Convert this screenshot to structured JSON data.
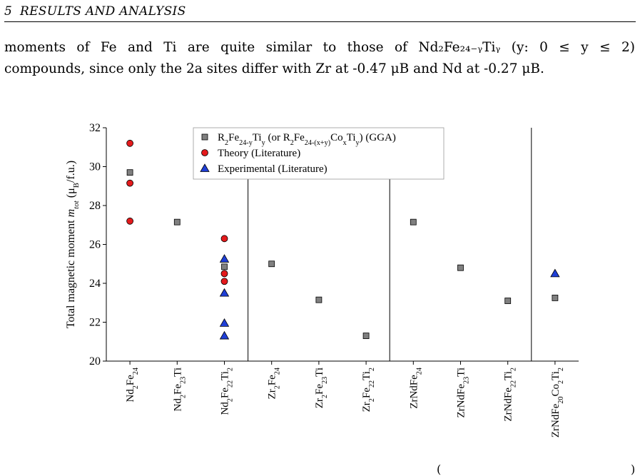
{
  "header": {
    "section_number": "5",
    "section_title": "RESULTS AND ANALYSIS"
  },
  "paragraph": {
    "line1": "moments of Fe and Ti are quite similar to those of Nd₂Fe₂₄₋ᵧTiᵧ (y:  0 ≤ y ≤ 2)",
    "line2": "compounds, since only the 2a sites differ with Zr at -0.47 μB and Nd at -0.27 μB."
  },
  "footer": {
    "left_paren": "(",
    "right_paren": ")"
  },
  "colors": {
    "gga": "#808080",
    "theory": "#e41a1c",
    "experimental": "#1f3fd6"
  },
  "chart_data": {
    "type": "scatter",
    "ylabel": "Total magnetic moment m_tot (μB/f.u.)",
    "ylim": [
      20,
      32
    ],
    "yticks": [
      20,
      22,
      24,
      26,
      28,
      30,
      32
    ],
    "categories": [
      "Nd2Fe24",
      "Nd2Fe23Ti",
      "Nd2Fe22Ti2",
      "Zr2Fe24",
      "Zr2Fe23Ti",
      "Zr2Fe22Ti2",
      "ZrNdFe24",
      "ZrNdFe23Ti",
      "ZrNdFe22Ti2",
      "ZrNdFe20Co2Ti2"
    ],
    "category_labels": [
      [
        [
          "Nd",
          "n"
        ],
        [
          "2",
          "s"
        ],
        [
          "Fe",
          "n"
        ],
        [
          "24",
          "s"
        ]
      ],
      [
        [
          "Nd",
          "n"
        ],
        [
          "2",
          "s"
        ],
        [
          "Fe",
          "n"
        ],
        [
          "23",
          "s"
        ],
        [
          "Ti",
          "n"
        ]
      ],
      [
        [
          "Nd",
          "n"
        ],
        [
          "2",
          "s"
        ],
        [
          "Fe",
          "n"
        ],
        [
          "22",
          "s"
        ],
        [
          "Ti",
          "n"
        ],
        [
          "2",
          "s"
        ]
      ],
      [
        [
          "Zr",
          "n"
        ],
        [
          "2",
          "s"
        ],
        [
          "Fe",
          "n"
        ],
        [
          "24",
          "s"
        ]
      ],
      [
        [
          "Zr",
          "n"
        ],
        [
          "2",
          "s"
        ],
        [
          "Fe",
          "n"
        ],
        [
          "23",
          "s"
        ],
        [
          "Ti",
          "n"
        ]
      ],
      [
        [
          "Zr",
          "n"
        ],
        [
          "2",
          "s"
        ],
        [
          "Fe",
          "n"
        ],
        [
          "22",
          "s"
        ],
        [
          "Ti",
          "n"
        ],
        [
          "2",
          "s"
        ]
      ],
      [
        [
          "ZrNdFe",
          "n"
        ],
        [
          "24",
          "s"
        ]
      ],
      [
        [
          "ZrNdFe",
          "n"
        ],
        [
          "23",
          "s"
        ],
        [
          "Ti",
          "n"
        ]
      ],
      [
        [
          "ZrNdFe",
          "n"
        ],
        [
          "22",
          "s"
        ],
        [
          "Ti",
          "n"
        ],
        [
          "2",
          "s"
        ]
      ],
      [
        [
          "ZrNdFe",
          "n"
        ],
        [
          "20",
          "s"
        ],
        [
          "Co",
          "n"
        ],
        [
          "2",
          "s"
        ],
        [
          "Ti",
          "n"
        ],
        [
          "2",
          "s"
        ]
      ]
    ],
    "separators_after": [
      3,
      6,
      9
    ],
    "legend_placement": "top-center",
    "series": [
      {
        "name": "R2Fe24-yTiy (or R2Fe24-(x+y)CoxTiy) (GGA)",
        "marker": "square",
        "color": "#808080",
        "points": [
          [
            1,
            29.7
          ],
          [
            2,
            27.15
          ],
          [
            3,
            24.85
          ],
          [
            4,
            25.0
          ],
          [
            5,
            23.15
          ],
          [
            6,
            21.3
          ],
          [
            7,
            27.15
          ],
          [
            8,
            24.8
          ],
          [
            9,
            23.1
          ],
          [
            10,
            23.25
          ]
        ]
      },
      {
        "name": "Theory (Literature)",
        "marker": "circle",
        "color": "#e41a1c",
        "points": [
          [
            1,
            31.2
          ],
          [
            1,
            29.15
          ],
          [
            1,
            27.2
          ],
          [
            3,
            26.3
          ],
          [
            3,
            24.5
          ],
          [
            3,
            24.1
          ]
        ]
      },
      {
        "name": "Experimental (Literature)",
        "marker": "triangle",
        "color": "#1f3fd6",
        "points": [
          [
            3,
            25.25
          ],
          [
            3,
            23.5
          ],
          [
            3,
            21.95
          ],
          [
            3,
            21.3
          ],
          [
            10,
            24.5
          ]
        ]
      }
    ],
    "legend": [
      [
        [
          "R",
          "n"
        ],
        [
          "2",
          "s"
        ],
        [
          "Fe",
          "n"
        ],
        [
          "24-y",
          "s"
        ],
        [
          "Ti",
          "n"
        ],
        [
          "y",
          "s"
        ],
        [
          " (or R",
          "n"
        ],
        [
          "2",
          "s"
        ],
        [
          "Fe",
          "n"
        ],
        [
          "24-(x+y)",
          "s"
        ],
        [
          "Co",
          "n"
        ],
        [
          "x",
          "s"
        ],
        [
          "Ti",
          "n"
        ],
        [
          "y",
          "s"
        ],
        [
          ") (GGA)",
          "n"
        ]
      ],
      [
        [
          "Theory (Literature)",
          "n"
        ]
      ],
      [
        [
          "Experimental (Literature)",
          "n"
        ]
      ]
    ]
  }
}
